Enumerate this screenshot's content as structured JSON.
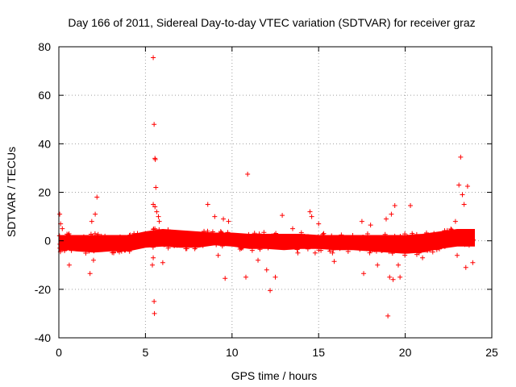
{
  "chart_data": {
    "type": "scatter",
    "title": "Day 166 of 2011, Sidereal Day-to-day VTEC variation (SDTVAR) for receiver graz",
    "xlabel": "GPS time / hours",
    "ylabel": "SDTVAR / TECUs",
    "xlim": [
      0,
      25
    ],
    "ylim": [
      -40,
      80
    ],
    "xticks": [
      "0",
      "5",
      "10",
      "15",
      "20",
      "25"
    ],
    "yticks": [
      "-40",
      "-20",
      "0",
      "20",
      "40",
      "60",
      "80"
    ],
    "grid": true,
    "marker": "+",
    "marker_color": "#ff0000",
    "series": [
      {
        "name": "SDTVAR",
        "dense_band": [
          [
            0.0,
            0.0,
            -1.0
          ],
          [
            0.5,
            0.0,
            -0.5
          ],
          [
            1.0,
            0.0,
            -1.0
          ],
          [
            2.0,
            0.0,
            -1.5
          ],
          [
            3.0,
            0.0,
            -1.0
          ],
          [
            4.0,
            0.0,
            -1.0
          ],
          [
            5.0,
            1.5,
            0.5
          ],
          [
            6.0,
            2.5,
            1.0
          ],
          [
            7.0,
            2.0,
            0.5
          ],
          [
            8.0,
            1.5,
            0.5
          ],
          [
            9.0,
            1.0,
            1.5
          ],
          [
            10.0,
            1.0,
            1.0
          ],
          [
            11.0,
            0.5,
            0.0
          ],
          [
            12.0,
            0.5,
            0.0
          ],
          [
            13.0,
            0.5,
            -0.5
          ],
          [
            14.0,
            0.5,
            0.0
          ],
          [
            15.0,
            0.0,
            0.0
          ],
          [
            16.0,
            0.0,
            -0.5
          ],
          [
            17.0,
            0.0,
            -0.5
          ],
          [
            18.0,
            0.0,
            -1.0
          ],
          [
            19.0,
            0.0,
            -1.5
          ],
          [
            20.0,
            0.0,
            -2.0
          ],
          [
            21.0,
            0.5,
            -1.5
          ],
          [
            22.0,
            1.5,
            0.0
          ],
          [
            23.0,
            2.5,
            1.0
          ],
          [
            24.0,
            2.5,
            1.0
          ]
        ],
        "points": [
          [
            5.45,
            75.5
          ],
          [
            5.5,
            48
          ],
          [
            5.55,
            34
          ],
          [
            5.57,
            33.5
          ],
          [
            5.6,
            22
          ],
          [
            5.45,
            15
          ],
          [
            5.55,
            14
          ],
          [
            5.65,
            12
          ],
          [
            5.75,
            10
          ],
          [
            5.8,
            8
          ],
          [
            5.5,
            -25
          ],
          [
            5.52,
            -30
          ],
          [
            5.4,
            -10
          ],
          [
            5.45,
            -7
          ],
          [
            6.0,
            -9
          ],
          [
            0.05,
            11
          ],
          [
            0.1,
            7
          ],
          [
            0.2,
            5
          ],
          [
            0.6,
            -10
          ],
          [
            1.8,
            -13.5
          ],
          [
            2.2,
            18
          ],
          [
            2.1,
            11
          ],
          [
            1.9,
            8
          ],
          [
            2.0,
            -8
          ],
          [
            8.6,
            15
          ],
          [
            9.0,
            10
          ],
          [
            9.5,
            9
          ],
          [
            9.8,
            8
          ],
          [
            9.6,
            -15.5
          ],
          [
            9.2,
            -6
          ],
          [
            10.9,
            27.5
          ],
          [
            10.8,
            -15
          ],
          [
            11.5,
            -8
          ],
          [
            12.2,
            -20.5
          ],
          [
            12.5,
            -15
          ],
          [
            12.0,
            -12
          ],
          [
            13.8,
            -5
          ],
          [
            12.9,
            10.5
          ],
          [
            13.5,
            5
          ],
          [
            14.5,
            12
          ],
          [
            14.6,
            10
          ],
          [
            14.8,
            -5
          ],
          [
            15.0,
            7
          ],
          [
            15.8,
            -5
          ],
          [
            15.9,
            -8.5
          ],
          [
            17.5,
            8
          ],
          [
            17.6,
            -13.5
          ],
          [
            18.0,
            6.5
          ],
          [
            18.4,
            -10
          ],
          [
            18.9,
            9
          ],
          [
            19.2,
            11
          ],
          [
            19.4,
            14.5
          ],
          [
            19.0,
            -31
          ],
          [
            19.1,
            -15
          ],
          [
            19.3,
            -16
          ],
          [
            19.6,
            -10
          ],
          [
            19.7,
            -15
          ],
          [
            20.3,
            14.5
          ],
          [
            20.4,
            3
          ],
          [
            20.8,
            -5
          ],
          [
            21.0,
            -7
          ],
          [
            23.1,
            23
          ],
          [
            23.2,
            34.5
          ],
          [
            23.3,
            19
          ],
          [
            23.4,
            15
          ],
          [
            23.6,
            22.5
          ],
          [
            23.5,
            -11
          ],
          [
            23.9,
            -9
          ],
          [
            23.0,
            -6
          ],
          [
            22.9,
            8
          ]
        ]
      }
    ]
  }
}
